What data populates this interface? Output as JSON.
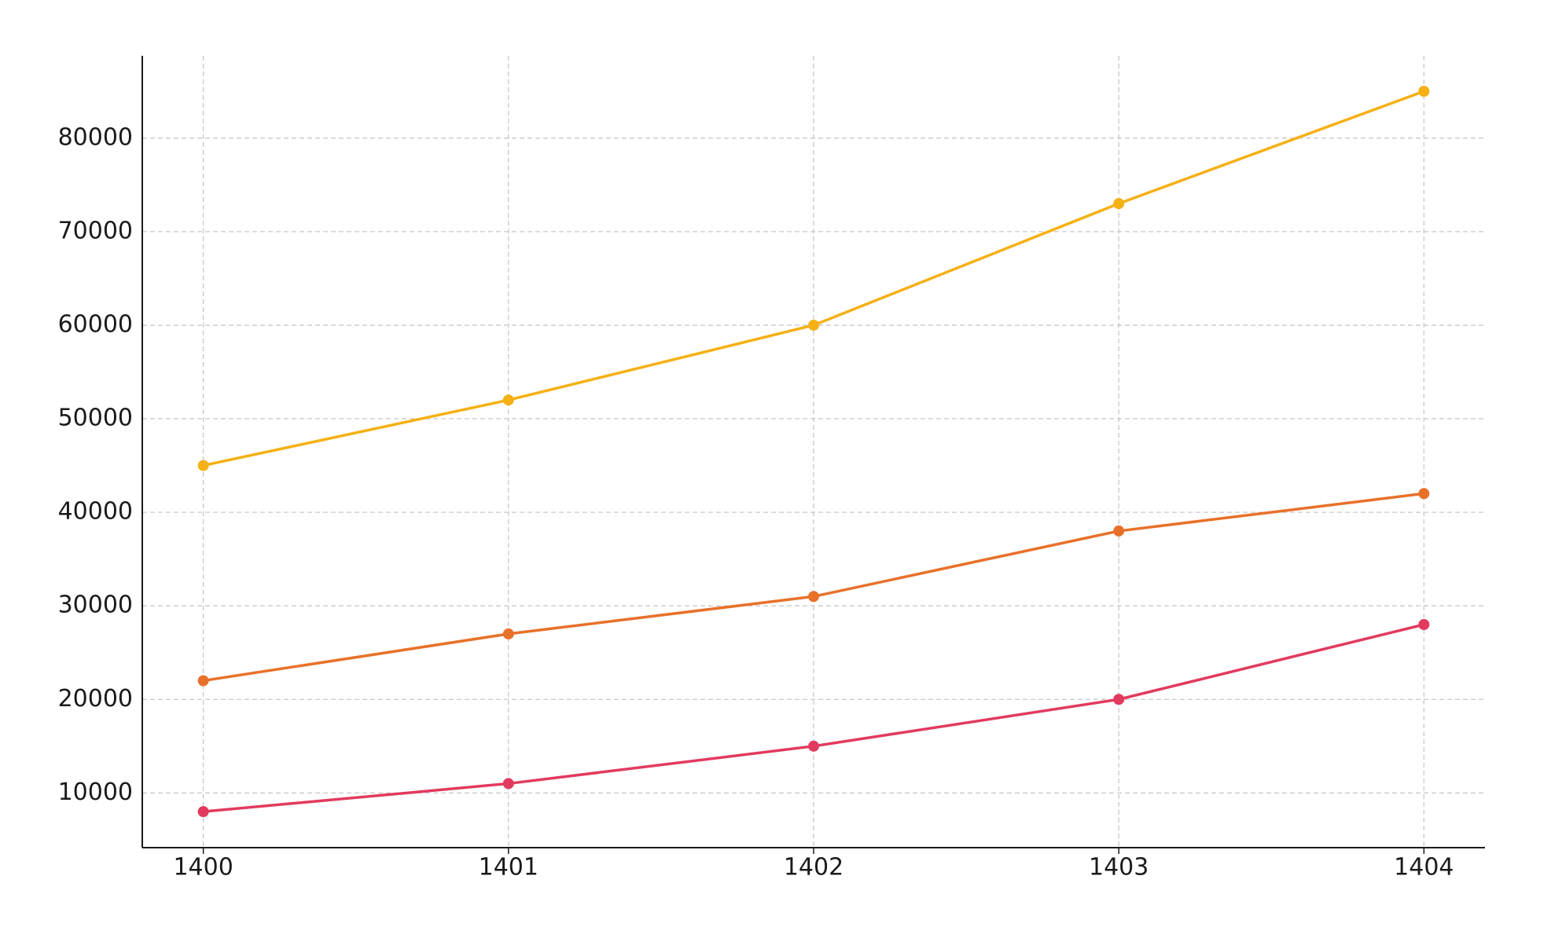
{
  "chart_data": {
    "type": "line",
    "x": [
      1400,
      1401,
      1402,
      1403,
      1404
    ],
    "series": [
      {
        "color": "#f5b014",
        "values": [
          45000,
          52000,
          60000,
          73000,
          85000
        ]
      },
      {
        "color": "#e8712a",
        "values": [
          22000,
          27000,
          31000,
          38000,
          42000
        ]
      },
      {
        "color": "#e23a5e",
        "values": [
          8000,
          11000,
          15000,
          20000,
          28000
        ]
      }
    ],
    "xlim": [
      1399.8,
      1404.2
    ],
    "xticks": [
      1400,
      1401,
      1402,
      1403,
      1404
    ],
    "ylim": [
      4150,
      88800
    ],
    "yticks": [
      10000,
      20000,
      30000,
      40000,
      50000,
      60000,
      70000,
      80000
    ],
    "grid": true,
    "markers": true
  }
}
